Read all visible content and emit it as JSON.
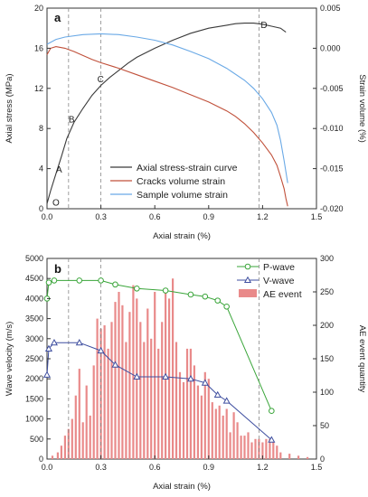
{
  "chart_data": [
    {
      "type": "line",
      "panel": "a",
      "xlabel": "Axial strain (%)",
      "ylabel": "Axial stress (MPa)",
      "y2label": "Strain volume (%)",
      "xlim": [
        0,
        1.5
      ],
      "ylim": [
        0,
        20
      ],
      "y2lim": [
        -0.02,
        0.005
      ],
      "xticks": [
        "0.0",
        "0.3",
        "0.6",
        "0.9",
        "1.2",
        "1.5"
      ],
      "yticks": [
        "0",
        "4",
        "8",
        "12",
        "16",
        "20"
      ],
      "y2ticks": [
        "-0.020",
        "-0.015",
        "-0.010",
        "-0.005",
        "0.000",
        "0.005"
      ],
      "vlines": [
        0.12,
        0.3,
        1.18
      ],
      "legend_position": "bottom-right",
      "series": [
        {
          "name": "Axial stress-strain curve",
          "axis": "left",
          "color": "#3a3a3a",
          "x": [
            0,
            0.02,
            0.05,
            0.08,
            0.11,
            0.15,
            0.2,
            0.25,
            0.3,
            0.35,
            0.4,
            0.45,
            0.5,
            0.6,
            0.7,
            0.8,
            0.9,
            1.0,
            1.05,
            1.1,
            1.15,
            1.2,
            1.25,
            1.3,
            1.33
          ],
          "y": [
            0.5,
            1.8,
            3.5,
            5.2,
            7.0,
            8.6,
            10.0,
            11.3,
            12.3,
            13.1,
            13.8,
            14.5,
            15.1,
            16.0,
            16.8,
            17.5,
            18.0,
            18.3,
            18.45,
            18.5,
            18.5,
            18.4,
            18.2,
            18.0,
            17.6
          ]
        },
        {
          "name": "Cracks volume strain",
          "axis": "right",
          "color": "#c0503a",
          "x": [
            0,
            0.02,
            0.05,
            0.1,
            0.15,
            0.2,
            0.25,
            0.3,
            0.4,
            0.5,
            0.6,
            0.7,
            0.8,
            0.9,
            1.0,
            1.05,
            1.1,
            1.15,
            1.2,
            1.25,
            1.28,
            1.3,
            1.32,
            1.33,
            1.34
          ],
          "y": [
            -0.0008,
            0.0,
            0.0002,
            0.0,
            -0.0004,
            -0.0009,
            -0.0014,
            -0.0018,
            -0.0025,
            -0.0033,
            -0.0041,
            -0.0049,
            -0.0058,
            -0.0067,
            -0.0078,
            -0.0085,
            -0.0094,
            -0.0105,
            -0.0118,
            -0.0133,
            -0.0146,
            -0.016,
            -0.0175,
            -0.0187,
            -0.0197
          ]
        },
        {
          "name": "Sample volume strain",
          "axis": "right",
          "color": "#6aa9e6",
          "x": [
            0,
            0.05,
            0.1,
            0.2,
            0.3,
            0.4,
            0.5,
            0.6,
            0.7,
            0.8,
            0.9,
            1.0,
            1.1,
            1.15,
            1.2,
            1.25,
            1.28,
            1.3,
            1.32,
            1.34
          ],
          "y": [
            0.0005,
            0.0011,
            0.0014,
            0.0017,
            0.0018,
            0.0017,
            0.0014,
            0.001,
            0.0004,
            -0.0004,
            -0.0013,
            -0.0025,
            -0.004,
            -0.005,
            -0.0063,
            -0.008,
            -0.0096,
            -0.0115,
            -0.014,
            -0.0168
          ]
        }
      ],
      "point_labels": [
        {
          "label": "O",
          "x": 0.02,
          "y": 0.3
        },
        {
          "label": "A",
          "x": 0.04,
          "y": 3.6
        },
        {
          "label": "B",
          "x": 0.11,
          "y": 8.6
        },
        {
          "label": "C",
          "x": 0.27,
          "y": 12.6
        },
        {
          "label": "D",
          "x": 1.18,
          "y": 18.0
        }
      ]
    },
    {
      "type": "bar+line",
      "panel": "b",
      "xlabel": "Axial strain (%)",
      "ylabel": "Wave velocity (m/s)",
      "y2label": "AE event quantity",
      "xlim": [
        0,
        1.5
      ],
      "ylim": [
        0,
        5000
      ],
      "y2lim": [
        0,
        300
      ],
      "xticks": [
        "0.0",
        "0.3",
        "0.6",
        "0.9",
        "1.2",
        "1.5"
      ],
      "yticks": [
        "0",
        "500",
        "1000",
        "1500",
        "2000",
        "2500",
        "3000",
        "3500",
        "4000",
        "4500",
        "5000"
      ],
      "y2ticks": [
        "0",
        "50",
        "100",
        "150",
        "200",
        "250",
        "300"
      ],
      "vlines": [
        0.12,
        0.3,
        1.18
      ],
      "legend_position": "top-right",
      "series": [
        {
          "name": "P-wave",
          "axis": "left",
          "color": "#3aa53a",
          "marker": "circle",
          "x": [
            0,
            0.01,
            0.04,
            0.18,
            0.3,
            0.38,
            0.5,
            0.66,
            0.8,
            0.88,
            0.95,
            1.0,
            1.25
          ],
          "y": [
            4000,
            4400,
            4450,
            4450,
            4450,
            4350,
            4250,
            4200,
            4100,
            4050,
            3950,
            3800,
            1200
          ]
        },
        {
          "name": "V-wave",
          "axis": "left",
          "color": "#3f4fa0",
          "marker": "triangle",
          "x": [
            0,
            0.01,
            0.04,
            0.18,
            0.3,
            0.38,
            0.5,
            0.66,
            0.8,
            0.88,
            0.95,
            1.0,
            1.25
          ],
          "y": [
            2100,
            2750,
            2900,
            2900,
            2700,
            2350,
            2050,
            2050,
            2000,
            1900,
            1600,
            1450,
            480
          ]
        },
        {
          "name": "AE event",
          "axis": "right",
          "color": "#e98a8a",
          "kind": "bar",
          "x": [
            0.03,
            0.06,
            0.08,
            0.1,
            0.12,
            0.14,
            0.16,
            0.18,
            0.2,
            0.22,
            0.24,
            0.26,
            0.28,
            0.3,
            0.32,
            0.34,
            0.36,
            0.38,
            0.4,
            0.42,
            0.44,
            0.46,
            0.48,
            0.5,
            0.52,
            0.54,
            0.56,
            0.58,
            0.6,
            0.62,
            0.64,
            0.66,
            0.68,
            0.7,
            0.72,
            0.74,
            0.76,
            0.78,
            0.8,
            0.82,
            0.84,
            0.86,
            0.88,
            0.9,
            0.92,
            0.94,
            0.96,
            0.98,
            1.0,
            1.02,
            1.04,
            1.06,
            1.08,
            1.1,
            1.12,
            1.14,
            1.16,
            1.18,
            1.2,
            1.22,
            1.24,
            1.26,
            1.28,
            1.3,
            1.35,
            1.4,
            1.45
          ],
          "y": [
            5,
            10,
            20,
            35,
            45,
            60,
            95,
            135,
            55,
            110,
            65,
            140,
            210,
            195,
            200,
            165,
            205,
            235,
            250,
            230,
            175,
            220,
            260,
            240,
            205,
            175,
            225,
            180,
            250,
            165,
            205,
            255,
            240,
            270,
            175,
            130,
            115,
            165,
            165,
            140,
            110,
            95,
            130,
            120,
            85,
            75,
            80,
            65,
            75,
            40,
            70,
            55,
            35,
            35,
            40,
            25,
            30,
            30,
            25,
            30,
            30,
            25,
            20,
            10,
            8,
            5,
            3
          ]
        }
      ]
    }
  ]
}
